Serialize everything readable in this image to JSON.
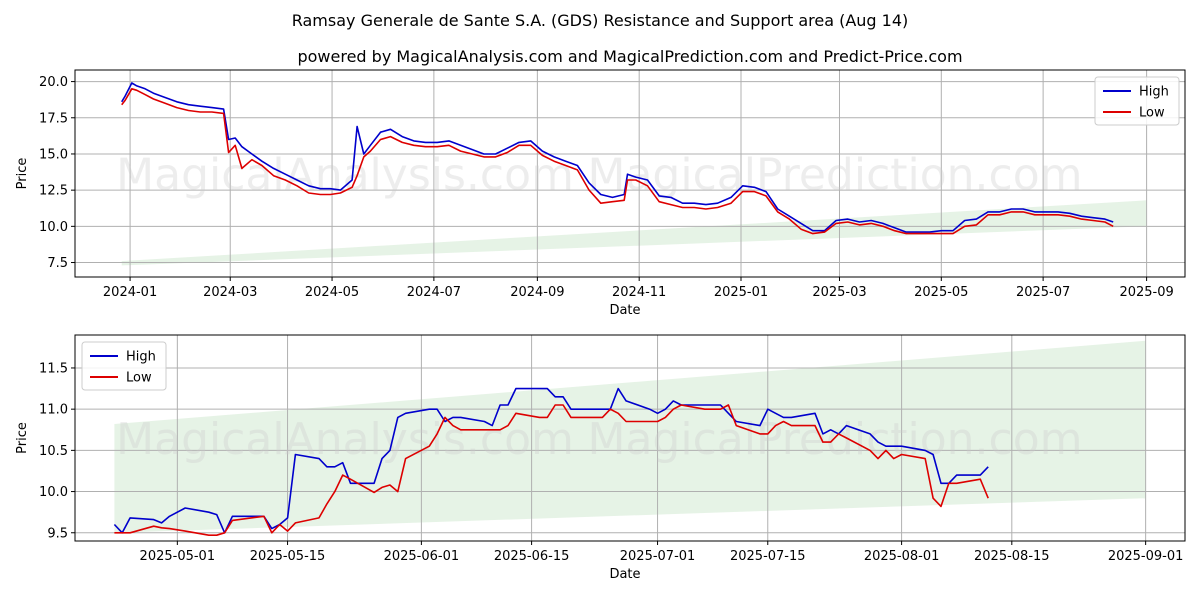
{
  "title": "Ramsay Generale de Sante S.A. (GDS) Resistance and Support area (Aug 14)",
  "subtitle": "powered by MagicalAnalysis.com and MagicalPrediction.com and Predict-Price.com",
  "watermarks": [
    "MagicalAnalysis.com",
    "MagicalPrediction.com"
  ],
  "colors": {
    "high": "#0000cc",
    "low": "#dd0000",
    "band": "#d8ecd8",
    "grid": "#b0b0b0"
  },
  "chart_data": [
    {
      "type": "line",
      "title": "",
      "xlabel": "Date",
      "ylabel": "Price",
      "xlim": [
        "2023-11-29",
        "2025-09-24"
      ],
      "ylim": [
        6.5,
        20.8
      ],
      "xticks": [
        "2024-01-01",
        "2024-03-01",
        "2024-05-01",
        "2024-07-01",
        "2024-09-01",
        "2024-11-01",
        "2025-01-01",
        "2025-03-01",
        "2025-05-01",
        "2025-07-01",
        "2025-09-01"
      ],
      "xtick_labels": [
        "2024-01",
        "2024-03",
        "2024-05",
        "2024-07",
        "2024-09",
        "2024-11",
        "2025-01",
        "2025-03",
        "2025-05",
        "2025-07",
        "2025-09"
      ],
      "yticks": [
        7.5,
        10.0,
        12.5,
        15.0,
        17.5,
        20.0
      ],
      "ytick_labels": [
        "7.5",
        "10.0",
        "12.5",
        "15.0",
        "17.5",
        "20.0"
      ],
      "grid": true,
      "legend": {
        "position": "top-right",
        "entries": [
          "High",
          "Low"
        ]
      },
      "band": {
        "start": "2023-12-27",
        "end": "2025-09-01",
        "lower": [
          7.3,
          10.0
        ],
        "upper": [
          7.6,
          11.8
        ]
      },
      "series": [
        {
          "name": "High",
          "x": [
            "2023-12-27",
            "2023-12-29",
            "2024-01-02",
            "2024-01-05",
            "2024-01-10",
            "2024-01-15",
            "2024-01-22",
            "2024-01-29",
            "2024-02-05",
            "2024-02-12",
            "2024-02-19",
            "2024-02-26",
            "2024-02-29",
            "2024-03-04",
            "2024-03-08",
            "2024-03-14",
            "2024-03-20",
            "2024-03-27",
            "2024-04-03",
            "2024-04-10",
            "2024-04-17",
            "2024-04-24",
            "2024-04-30",
            "2024-05-06",
            "2024-05-13",
            "2024-05-16",
            "2024-05-20",
            "2024-05-24",
            "2024-05-30",
            "2024-06-05",
            "2024-06-12",
            "2024-06-19",
            "2024-06-26",
            "2024-07-03",
            "2024-07-10",
            "2024-07-17",
            "2024-07-24",
            "2024-07-31",
            "2024-08-07",
            "2024-08-14",
            "2024-08-21",
            "2024-08-28",
            "2024-09-04",
            "2024-09-11",
            "2024-09-18",
            "2024-09-25",
            "2024-10-02",
            "2024-10-09",
            "2024-10-16",
            "2024-10-23",
            "2024-10-25",
            "2024-10-30",
            "2024-11-06",
            "2024-11-13",
            "2024-11-20",
            "2024-11-27",
            "2024-12-04",
            "2024-12-11",
            "2024-12-18",
            "2024-12-26",
            "2025-01-02",
            "2025-01-09",
            "2025-01-16",
            "2025-01-23",
            "2025-01-30",
            "2025-02-06",
            "2025-02-13",
            "2025-02-20",
            "2025-02-27",
            "2025-03-06",
            "2025-03-13",
            "2025-03-20",
            "2025-03-27",
            "2025-04-03",
            "2025-04-10",
            "2025-04-17",
            "2025-04-24",
            "2025-05-01",
            "2025-05-08",
            "2025-05-15",
            "2025-05-22",
            "2025-05-29",
            "2025-06-05",
            "2025-06-12",
            "2025-06-19",
            "2025-06-26",
            "2025-07-03",
            "2025-07-10",
            "2025-07-17",
            "2025-07-24",
            "2025-07-31",
            "2025-08-07",
            "2025-08-12"
          ],
          "values": [
            18.6,
            19.0,
            19.9,
            19.7,
            19.5,
            19.2,
            18.9,
            18.6,
            18.4,
            18.3,
            18.2,
            18.1,
            16.0,
            16.1,
            15.5,
            15.0,
            14.5,
            14.0,
            13.6,
            13.2,
            12.8,
            12.6,
            12.6,
            12.5,
            13.2,
            16.9,
            15.0,
            15.6,
            16.5,
            16.7,
            16.2,
            15.9,
            15.8,
            15.8,
            15.9,
            15.6,
            15.3,
            15.0,
            15.0,
            15.4,
            15.8,
            15.9,
            15.2,
            14.8,
            14.5,
            14.2,
            13.0,
            12.2,
            12.0,
            12.2,
            13.6,
            13.4,
            13.2,
            12.1,
            12.0,
            11.6,
            11.6,
            11.5,
            11.6,
            12.0,
            12.8,
            12.7,
            12.4,
            11.2,
            10.7,
            10.2,
            9.7,
            9.7,
            10.4,
            10.5,
            10.3,
            10.4,
            10.2,
            9.9,
            9.6,
            9.6,
            9.6,
            9.7,
            9.7,
            10.4,
            10.5,
            11.0,
            11.0,
            11.2,
            11.2,
            11.0,
            11.0,
            11.0,
            10.9,
            10.7,
            10.6,
            10.5,
            10.3
          ]
        },
        {
          "name": "Low",
          "x": [
            "2023-12-27",
            "2023-12-29",
            "2024-01-02",
            "2024-01-05",
            "2024-01-10",
            "2024-01-15",
            "2024-01-22",
            "2024-01-29",
            "2024-02-05",
            "2024-02-12",
            "2024-02-19",
            "2024-02-26",
            "2024-02-29",
            "2024-03-04",
            "2024-03-08",
            "2024-03-14",
            "2024-03-20",
            "2024-03-27",
            "2024-04-03",
            "2024-04-10",
            "2024-04-17",
            "2024-04-24",
            "2024-04-30",
            "2024-05-06",
            "2024-05-13",
            "2024-05-16",
            "2024-05-20",
            "2024-05-24",
            "2024-05-30",
            "2024-06-05",
            "2024-06-12",
            "2024-06-19",
            "2024-06-26",
            "2024-07-03",
            "2024-07-10",
            "2024-07-17",
            "2024-07-24",
            "2024-07-31",
            "2024-08-07",
            "2024-08-14",
            "2024-08-21",
            "2024-08-28",
            "2024-09-04",
            "2024-09-11",
            "2024-09-18",
            "2024-09-25",
            "2024-10-02",
            "2024-10-09",
            "2024-10-16",
            "2024-10-23",
            "2024-10-25",
            "2024-10-30",
            "2024-11-06",
            "2024-11-13",
            "2024-11-20",
            "2024-11-27",
            "2024-12-04",
            "2024-12-11",
            "2024-12-18",
            "2024-12-26",
            "2025-01-02",
            "2025-01-09",
            "2025-01-16",
            "2025-01-23",
            "2025-01-30",
            "2025-02-06",
            "2025-02-13",
            "2025-02-20",
            "2025-02-27",
            "2025-03-06",
            "2025-03-13",
            "2025-03-20",
            "2025-03-27",
            "2025-04-03",
            "2025-04-10",
            "2025-04-17",
            "2025-04-24",
            "2025-05-01",
            "2025-05-08",
            "2025-05-15",
            "2025-05-22",
            "2025-05-29",
            "2025-06-05",
            "2025-06-12",
            "2025-06-19",
            "2025-06-26",
            "2025-07-03",
            "2025-07-10",
            "2025-07-17",
            "2025-07-24",
            "2025-07-31",
            "2025-08-07",
            "2025-08-12"
          ],
          "values": [
            18.4,
            18.7,
            19.5,
            19.4,
            19.1,
            18.8,
            18.5,
            18.2,
            18.0,
            17.9,
            17.9,
            17.8,
            15.1,
            15.6,
            14.0,
            14.6,
            14.2,
            13.5,
            13.2,
            12.8,
            12.3,
            12.2,
            12.2,
            12.3,
            12.7,
            13.5,
            14.8,
            15.2,
            16.0,
            16.2,
            15.8,
            15.6,
            15.5,
            15.5,
            15.6,
            15.2,
            15.0,
            14.8,
            14.8,
            15.1,
            15.6,
            15.6,
            14.9,
            14.5,
            14.2,
            13.9,
            12.5,
            11.6,
            11.7,
            11.8,
            13.2,
            13.2,
            12.8,
            11.7,
            11.5,
            11.3,
            11.3,
            11.2,
            11.3,
            11.6,
            12.4,
            12.4,
            12.1,
            11.0,
            10.5,
            9.8,
            9.5,
            9.6,
            10.2,
            10.3,
            10.1,
            10.2,
            10.0,
            9.7,
            9.5,
            9.5,
            9.5,
            9.5,
            9.5,
            10.0,
            10.1,
            10.8,
            10.8,
            11.0,
            11.0,
            10.8,
            10.8,
            10.8,
            10.7,
            10.5,
            10.4,
            10.3,
            10.0
          ]
        }
      ]
    },
    {
      "type": "line",
      "title": "",
      "xlabel": "Date",
      "ylabel": "Price",
      "xlim": [
        "2025-04-18",
        "2025-09-06"
      ],
      "ylim": [
        9.4,
        11.9
      ],
      "xticks": [
        "2025-05-01",
        "2025-05-15",
        "2025-06-01",
        "2025-06-15",
        "2025-07-01",
        "2025-07-15",
        "2025-08-01",
        "2025-08-15",
        "2025-09-01"
      ],
      "xtick_labels": [
        "2025-05-01",
        "2025-05-15",
        "2025-06-01",
        "2025-06-15",
        "2025-07-01",
        "2025-07-15",
        "2025-08-01",
        "2025-08-15",
        "2025-09-01"
      ],
      "yticks": [
        9.5,
        10.0,
        10.5,
        11.0,
        11.5
      ],
      "ytick_labels": [
        "9.5",
        "10.0",
        "10.5",
        "11.0",
        "11.5"
      ],
      "grid": true,
      "legend": {
        "position": "top-left",
        "entries": [
          "High",
          "Low"
        ]
      },
      "band": {
        "start": "2025-04-23",
        "end": "2025-09-01",
        "lower": [
          9.5,
          9.92
        ],
        "upper": [
          10.82,
          11.83
        ]
      },
      "series": [
        {
          "name": "High",
          "x": [
            "2025-04-23",
            "2025-04-24",
            "2025-04-25",
            "2025-04-28",
            "2025-04-29",
            "2025-04-30",
            "2025-05-02",
            "2025-05-05",
            "2025-05-06",
            "2025-05-07",
            "2025-05-08",
            "2025-05-12",
            "2025-05-13",
            "2025-05-14",
            "2025-05-15",
            "2025-05-16",
            "2025-05-19",
            "2025-05-20",
            "2025-05-21",
            "2025-05-22",
            "2025-05-23",
            "2025-05-26",
            "2025-05-27",
            "2025-05-28",
            "2025-05-29",
            "2025-05-30",
            "2025-06-02",
            "2025-06-03",
            "2025-06-04",
            "2025-06-05",
            "2025-06-06",
            "2025-06-09",
            "2025-06-10",
            "2025-06-11",
            "2025-06-12",
            "2025-06-13",
            "2025-06-16",
            "2025-06-17",
            "2025-06-18",
            "2025-06-19",
            "2025-06-20",
            "2025-06-23",
            "2025-06-24",
            "2025-06-25",
            "2025-06-26",
            "2025-06-27",
            "2025-06-30",
            "2025-07-01",
            "2025-07-02",
            "2025-07-03",
            "2025-07-04",
            "2025-07-07",
            "2025-07-08",
            "2025-07-09",
            "2025-07-10",
            "2025-07-11",
            "2025-07-14",
            "2025-07-15",
            "2025-07-16",
            "2025-07-17",
            "2025-07-18",
            "2025-07-21",
            "2025-07-22",
            "2025-07-23",
            "2025-07-24",
            "2025-07-25",
            "2025-07-28",
            "2025-07-29",
            "2025-07-30",
            "2025-07-31",
            "2025-08-01",
            "2025-08-04",
            "2025-08-05",
            "2025-08-06",
            "2025-08-07",
            "2025-08-08",
            "2025-08-11",
            "2025-08-12"
          ],
          "values": [
            9.6,
            9.5,
            9.68,
            9.66,
            9.62,
            9.7,
            9.8,
            9.75,
            9.72,
            9.5,
            9.7,
            9.7,
            9.55,
            9.6,
            9.68,
            10.45,
            10.4,
            10.3,
            10.3,
            10.35,
            10.1,
            10.1,
            10.4,
            10.5,
            10.9,
            10.95,
            11.0,
            11.0,
            10.85,
            10.9,
            10.9,
            10.85,
            10.8,
            11.05,
            11.05,
            11.25,
            11.25,
            11.25,
            11.15,
            11.15,
            11.0,
            11.0,
            11.0,
            11.0,
            11.25,
            11.1,
            11.0,
            10.95,
            11.0,
            11.1,
            11.05,
            11.05,
            11.05,
            11.05,
            10.95,
            10.85,
            10.8,
            11.0,
            10.95,
            10.9,
            10.9,
            10.95,
            10.7,
            10.75,
            10.7,
            10.8,
            10.7,
            10.6,
            10.55,
            10.55,
            10.55,
            10.5,
            10.45,
            10.1,
            10.1,
            10.2,
            10.2,
            10.3
          ]
        },
        {
          "name": "Low",
          "x": [
            "2025-04-23",
            "2025-04-24",
            "2025-04-25",
            "2025-04-28",
            "2025-04-29",
            "2025-04-30",
            "2025-05-02",
            "2025-05-05",
            "2025-05-06",
            "2025-05-07",
            "2025-05-08",
            "2025-05-12",
            "2025-05-13",
            "2025-05-14",
            "2025-05-15",
            "2025-05-16",
            "2025-05-19",
            "2025-05-20",
            "2025-05-21",
            "2025-05-22",
            "2025-05-23",
            "2025-05-26",
            "2025-05-27",
            "2025-05-28",
            "2025-05-29",
            "2025-05-30",
            "2025-06-02",
            "2025-06-03",
            "2025-06-04",
            "2025-06-05",
            "2025-06-06",
            "2025-06-09",
            "2025-06-10",
            "2025-06-11",
            "2025-06-12",
            "2025-06-13",
            "2025-06-16",
            "2025-06-17",
            "2025-06-18",
            "2025-06-19",
            "2025-06-20",
            "2025-06-23",
            "2025-06-24",
            "2025-06-25",
            "2025-06-26",
            "2025-06-27",
            "2025-06-30",
            "2025-07-01",
            "2025-07-02",
            "2025-07-03",
            "2025-07-04",
            "2025-07-07",
            "2025-07-08",
            "2025-07-09",
            "2025-07-10",
            "2025-07-11",
            "2025-07-14",
            "2025-07-15",
            "2025-07-16",
            "2025-07-17",
            "2025-07-18",
            "2025-07-21",
            "2025-07-22",
            "2025-07-23",
            "2025-07-24",
            "2025-07-25",
            "2025-07-28",
            "2025-07-29",
            "2025-07-30",
            "2025-07-31",
            "2025-08-01",
            "2025-08-04",
            "2025-08-05",
            "2025-08-06",
            "2025-08-07",
            "2025-08-08",
            "2025-08-11",
            "2025-08-12"
          ],
          "values": [
            9.5,
            9.5,
            9.5,
            9.58,
            9.56,
            9.55,
            9.52,
            9.47,
            9.47,
            9.5,
            9.65,
            9.7,
            9.5,
            9.6,
            9.52,
            9.62,
            9.68,
            9.85,
            10.0,
            10.2,
            10.15,
            9.99,
            10.05,
            10.08,
            10.0,
            10.4,
            10.55,
            10.7,
            10.9,
            10.8,
            10.75,
            10.75,
            10.75,
            10.75,
            10.8,
            10.95,
            10.9,
            10.9,
            11.05,
            11.05,
            10.9,
            10.9,
            10.9,
            11.0,
            10.95,
            10.85,
            10.85,
            10.85,
            10.9,
            11.0,
            11.05,
            11.0,
            11.0,
            11.0,
            11.05,
            10.8,
            10.7,
            10.7,
            10.8,
            10.85,
            10.8,
            10.8,
            10.6,
            10.6,
            10.7,
            10.65,
            10.5,
            10.4,
            10.5,
            10.4,
            10.45,
            10.4,
            9.92,
            9.82,
            10.1,
            10.1,
            10.15,
            9.92
          ]
        }
      ]
    }
  ]
}
